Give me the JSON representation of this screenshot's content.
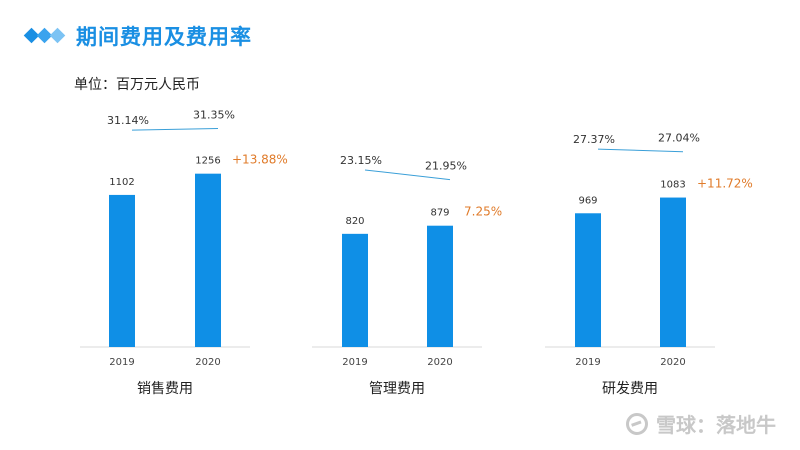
{
  "header": {
    "title": "期间费用及费用率",
    "unit": "单位：百万元人民币",
    "accent_color": "#1a8fe3",
    "icon": "diamonds-icon"
  },
  "colors": {
    "bar": "#0f8fe6",
    "line": "#3a9fd8",
    "growth": "#e07b2a",
    "axis": "#d9d9d9"
  },
  "chart_data": [
    {
      "type": "bar",
      "title": "销售费用",
      "categories": [
        "2019",
        "2020"
      ],
      "values": [
        1102,
        1256
      ],
      "value_labels": [
        "1102",
        "1256"
      ],
      "rate_labels": [
        "31.14%",
        "31.35%"
      ],
      "rates": [
        31.14,
        31.35
      ],
      "growth_label": "+13.88%",
      "ylim": [
        0,
        1500
      ]
    },
    {
      "type": "bar",
      "title": "管理费用",
      "categories": [
        "2019",
        "2020"
      ],
      "values": [
        820,
        879
      ],
      "value_labels": [
        "820",
        "879"
      ],
      "rate_labels": [
        "23.15%",
        "21.95%"
      ],
      "rates": [
        23.15,
        21.95
      ],
      "growth_label": "7.25%",
      "ylim": [
        0,
        1500
      ]
    },
    {
      "type": "bar",
      "title": "研发费用",
      "categories": [
        "2019",
        "2020"
      ],
      "values": [
        969,
        1083
      ],
      "value_labels": [
        "969",
        "1083"
      ],
      "rate_labels": [
        "27.37%",
        "27.04%"
      ],
      "rates": [
        27.37,
        27.04
      ],
      "growth_label": "+11.72%",
      "ylim": [
        0,
        1500
      ]
    }
  ],
  "watermark": {
    "text": "雪球：落地牛",
    "icon": "snowball-logo-icon"
  }
}
